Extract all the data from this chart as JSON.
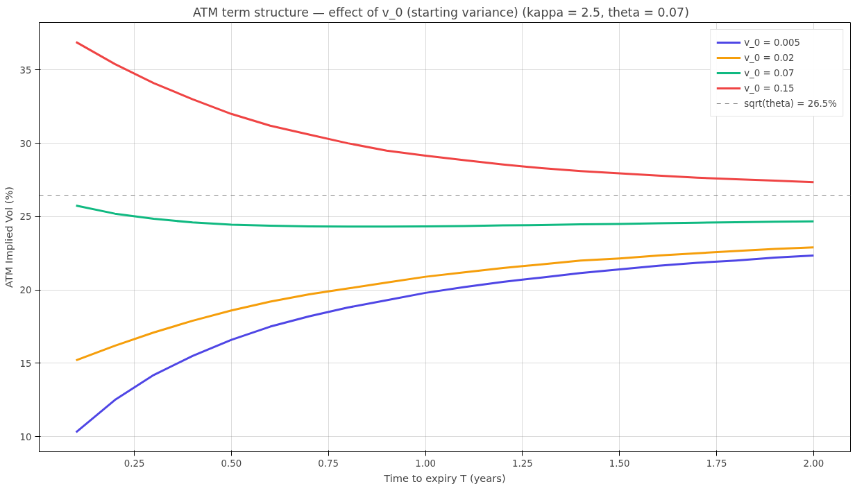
{
  "chart_data": {
    "type": "line",
    "title": "ATM term structure — effect of v_0 (starting variance)   (kappa = 2.5, theta = 0.07)",
    "xlabel": "Time to expiry T (years)",
    "ylabel": "ATM Implied Vol (%)",
    "x": [
      0.1,
      0.2,
      0.3,
      0.4,
      0.5,
      0.6,
      0.7,
      0.8,
      0.9,
      1.0,
      1.1,
      1.2,
      1.3,
      1.4,
      1.5,
      1.6,
      1.7,
      1.8,
      1.9,
      2.0
    ],
    "series": [
      {
        "name": "v_0 = 0.005",
        "color": "#4f46e5",
        "values": [
          10.3,
          12.5,
          14.2,
          15.5,
          16.6,
          17.5,
          18.2,
          18.8,
          19.3,
          19.8,
          20.2,
          20.55,
          20.85,
          21.15,
          21.4,
          21.65,
          21.85,
          22.0,
          22.2,
          22.35
        ]
      },
      {
        "name": "v_0 = 0.02",
        "color": "#f59e0b",
        "values": [
          15.2,
          16.2,
          17.1,
          17.9,
          18.6,
          19.2,
          19.7,
          20.1,
          20.5,
          20.9,
          21.2,
          21.5,
          21.75,
          22.0,
          22.15,
          22.35,
          22.5,
          22.65,
          22.8,
          22.9
        ]
      },
      {
        "name": "v_0 = 0.07",
        "color": "#10b981",
        "values": [
          25.75,
          25.2,
          24.85,
          24.6,
          24.45,
          24.38,
          24.33,
          24.32,
          24.32,
          24.33,
          24.36,
          24.4,
          24.43,
          24.47,
          24.5,
          24.54,
          24.58,
          24.62,
          24.65,
          24.68
        ]
      },
      {
        "name": "v_0 = 0.15",
        "color": "#ef4444",
        "values": [
          36.9,
          35.4,
          34.1,
          33.0,
          32.0,
          31.2,
          30.6,
          30.0,
          29.5,
          29.15,
          28.85,
          28.55,
          28.3,
          28.1,
          27.95,
          27.8,
          27.65,
          27.55,
          27.45,
          27.35
        ]
      }
    ],
    "ref_lines": [
      {
        "axis": "y",
        "value": 26.46,
        "label": "sqrt(theta) = 26.5%",
        "color": "#808080",
        "line_style": "dashed"
      }
    ],
    "xlim": [
      0.005,
      2.095
    ],
    "ylim": [
      8.97,
      38.23
    ],
    "xticks": [
      {
        "value": 0.25,
        "label": "0.25"
      },
      {
        "value": 0.5,
        "label": "0.50"
      },
      {
        "value": 0.75,
        "label": "0.75"
      },
      {
        "value": 1.0,
        "label": "1.00"
      },
      {
        "value": 1.25,
        "label": "1.25"
      },
      {
        "value": 1.5,
        "label": "1.50"
      },
      {
        "value": 1.75,
        "label": "1.75"
      },
      {
        "value": 2.0,
        "label": "2.00"
      }
    ],
    "yticks": [
      10,
      15,
      20,
      25,
      30,
      35
    ],
    "grid": true,
    "legend": "top right",
    "line_style": "solid",
    "marker": "none"
  }
}
